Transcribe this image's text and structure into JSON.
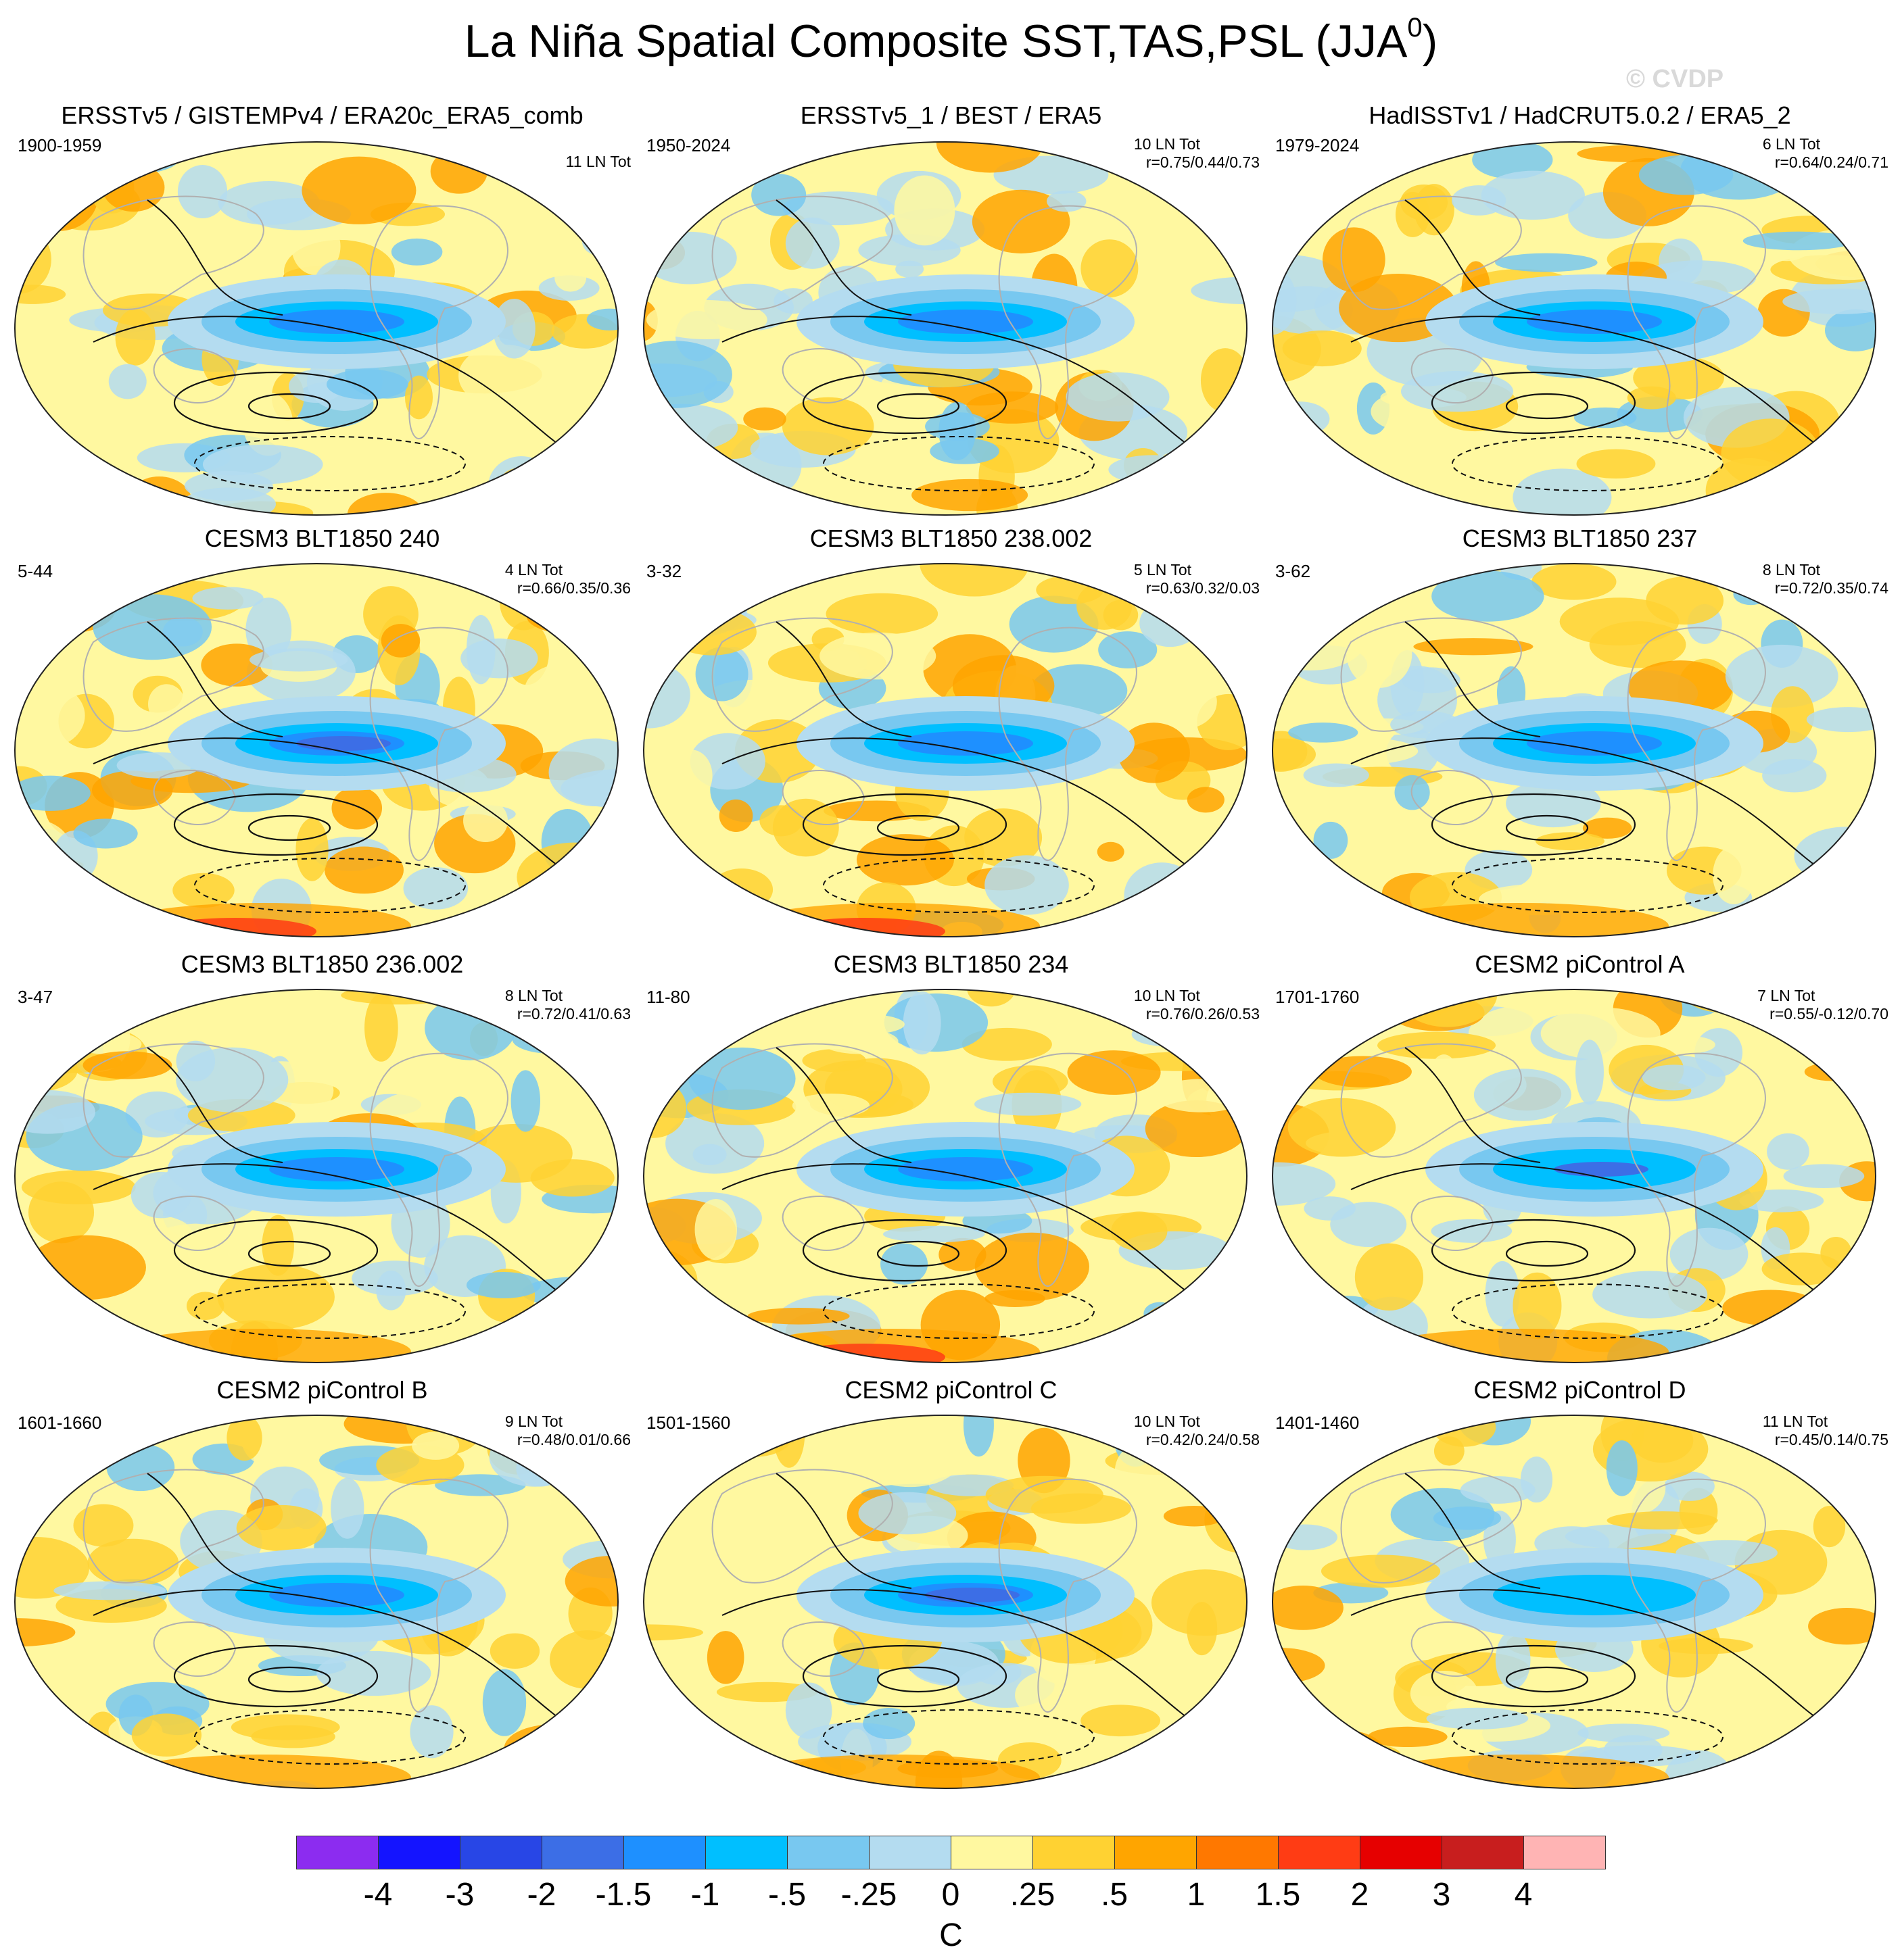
{
  "title": "La Niña Spatial Composite SST,TAS,PSL (JJA",
  "title_superscript": "0",
  "title_suffix": ")",
  "watermark": "© CVDP",
  "panels": [
    {
      "title": "ERSSTv5 / GISTEMPv4 / ERA20c_ERA5_comb",
      "years": "1900-1959",
      "count": "11 LN Tot",
      "corr": ""
    },
    {
      "title": "ERSSTv5_1 / BEST / ERA5",
      "years": "1950-2024",
      "count": "10 LN Tot",
      "corr": "r=0.75/0.44/0.73"
    },
    {
      "title": "HadISSTv1 / HadCRUT5.0.2 / ERA5_2",
      "years": "1979-2024",
      "count": "6 LN Tot",
      "corr": "r=0.64/0.24/0.71"
    },
    {
      "title": "CESM3 BLT1850 240",
      "years": "5-44",
      "count": "4 LN Tot",
      "corr": "r=0.66/0.35/0.36"
    },
    {
      "title": "CESM3 BLT1850 238.002",
      "years": "3-32",
      "count": "5 LN Tot",
      "corr": "r=0.63/0.32/0.03"
    },
    {
      "title": "CESM3 BLT1850 237",
      "years": "3-62",
      "count": "8 LN Tot",
      "corr": "r=0.72/0.35/0.74"
    },
    {
      "title": "CESM3 BLT1850 236.002",
      "years": "3-47",
      "count": "8 LN Tot",
      "corr": "r=0.72/0.41/0.63"
    },
    {
      "title": "CESM3 BLT1850 234",
      "years": "11-80",
      "count": "10 LN Tot",
      "corr": "r=0.76/0.26/0.53"
    },
    {
      "title": "CESM2 piControl A",
      "years": "1701-1760",
      "count": "7 LN Tot",
      "corr": "r=0.55/-0.12/0.70"
    },
    {
      "title": "CESM2 piControl B",
      "years": "1601-1660",
      "count": "9 LN Tot",
      "corr": "r=0.48/0.01/0.66"
    },
    {
      "title": "CESM2 piControl C",
      "years": "1501-1560",
      "count": "10 LN Tot",
      "corr": "r=0.42/0.24/0.58"
    },
    {
      "title": "CESM2 piControl D",
      "years": "1401-1460",
      "count": "11 LN Tot",
      "corr": "r=0.45/0.14/0.75"
    }
  ],
  "colorbar": {
    "labels": [
      "-4",
      "-3",
      "-2",
      "-1.5",
      "-1",
      "-.5",
      "-.25",
      "0",
      ".25",
      ".5",
      "1",
      "1.5",
      "2",
      "3",
      "4"
    ],
    "colors": [
      "#8c2cf0",
      "#1414ff",
      "#2846e6",
      "#3c6ee6",
      "#1e90ff",
      "#00bfff",
      "#78c8f0",
      "#b4dcf0",
      "#fff8a0",
      "#ffd232",
      "#ffa500",
      "#ff7800",
      "#ff3c14",
      "#e60000",
      "#c81e1e",
      "#ffb4b4"
    ],
    "units": "C"
  }
}
